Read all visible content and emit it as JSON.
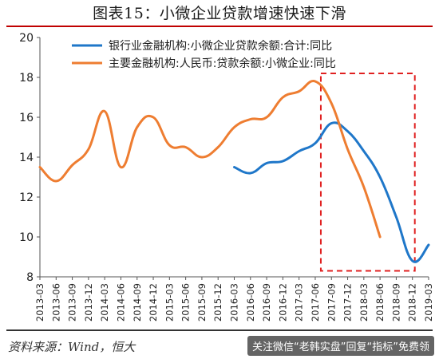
{
  "title": "图表15：小微企业贷款增速快速下滑",
  "source": "资料来源：Wind，恒大",
  "watermark": "关注微信“老韩实盘”回复“指标”免费领",
  "colors": {
    "series1": "#1f77c9",
    "series2": "#ee7d31",
    "highlight": "#e02020"
  },
  "chart_data": {
    "type": "line",
    "ylim": [
      8,
      20
    ],
    "yticks": [
      8,
      10,
      12,
      14,
      16,
      18,
      20
    ],
    "categories": [
      "2013-03",
      "2013-06",
      "2013-09",
      "2013-12",
      "2014-03",
      "2014-06",
      "2014-09",
      "2014-12",
      "2015-03",
      "2015-06",
      "2015-09",
      "2015-12",
      "2016-03",
      "2016-06",
      "2016-09",
      "2016-12",
      "2017-03",
      "2017-06",
      "2017-09",
      "2017-12",
      "2018-03",
      "2018-06",
      "2018-09",
      "2018-12",
      "2019-03"
    ],
    "series": [
      {
        "name": "银行业金融机构:小微企业贷款余额:合计:同比",
        "color": "#1f77c9",
        "values": [
          null,
          null,
          null,
          null,
          null,
          null,
          null,
          null,
          null,
          null,
          null,
          null,
          13.5,
          13.2,
          13.7,
          13.8,
          14.3,
          14.7,
          15.7,
          15.3,
          14.3,
          13.0,
          11.0,
          8.8,
          9.6
        ]
      },
      {
        "name": "主要金融机构:人民币:贷款余额:小微企业:同比",
        "color": "#ee7d31",
        "values": [
          13.5,
          12.8,
          13.6,
          14.4,
          16.3,
          13.5,
          15.5,
          16.0,
          14.6,
          14.5,
          14.0,
          14.5,
          15.5,
          15.9,
          16.0,
          17.0,
          17.3,
          17.8,
          16.7,
          14.4,
          12.5,
          10.0,
          null,
          null,
          null
        ]
      }
    ],
    "highlight_range": [
      "2017-06",
      "2018-12"
    ]
  }
}
